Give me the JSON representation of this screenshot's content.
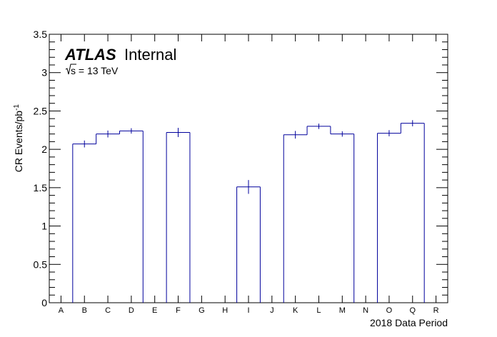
{
  "chart_data": {
    "type": "bar",
    "style": "histogram-step",
    "categories": [
      "A",
      "B",
      "C",
      "D",
      "E",
      "F",
      "G",
      "H",
      "I",
      "J",
      "K",
      "L",
      "M",
      "N",
      "O",
      "Q",
      "R"
    ],
    "values": [
      0,
      2.07,
      2.2,
      2.24,
      0,
      2.22,
      0,
      0,
      1.51,
      0,
      2.19,
      2.3,
      2.2,
      0,
      2.21,
      2.34,
      0
    ],
    "errors": [
      0,
      0.045,
      0.045,
      0.035,
      0,
      0.06,
      0,
      0,
      0.09,
      0,
      0.05,
      0.035,
      0.035,
      0,
      0.04,
      0.04,
      0
    ],
    "xlabel": "2018 Data Period",
    "ylabel": "CR Events/pb",
    "ylabel_sup": "-1",
    "ylim": [
      0,
      3.5
    ],
    "yticks": [
      "0",
      "0.5",
      "1",
      "1.5",
      "2",
      "2.5",
      "3",
      "3.5"
    ],
    "grid": false,
    "line_color": "#00009c",
    "annotation": {
      "experiment": "ATLAS",
      "label": "Internal",
      "energy_prefix": "s",
      "energy_suffix": " = 13 TeV"
    }
  }
}
